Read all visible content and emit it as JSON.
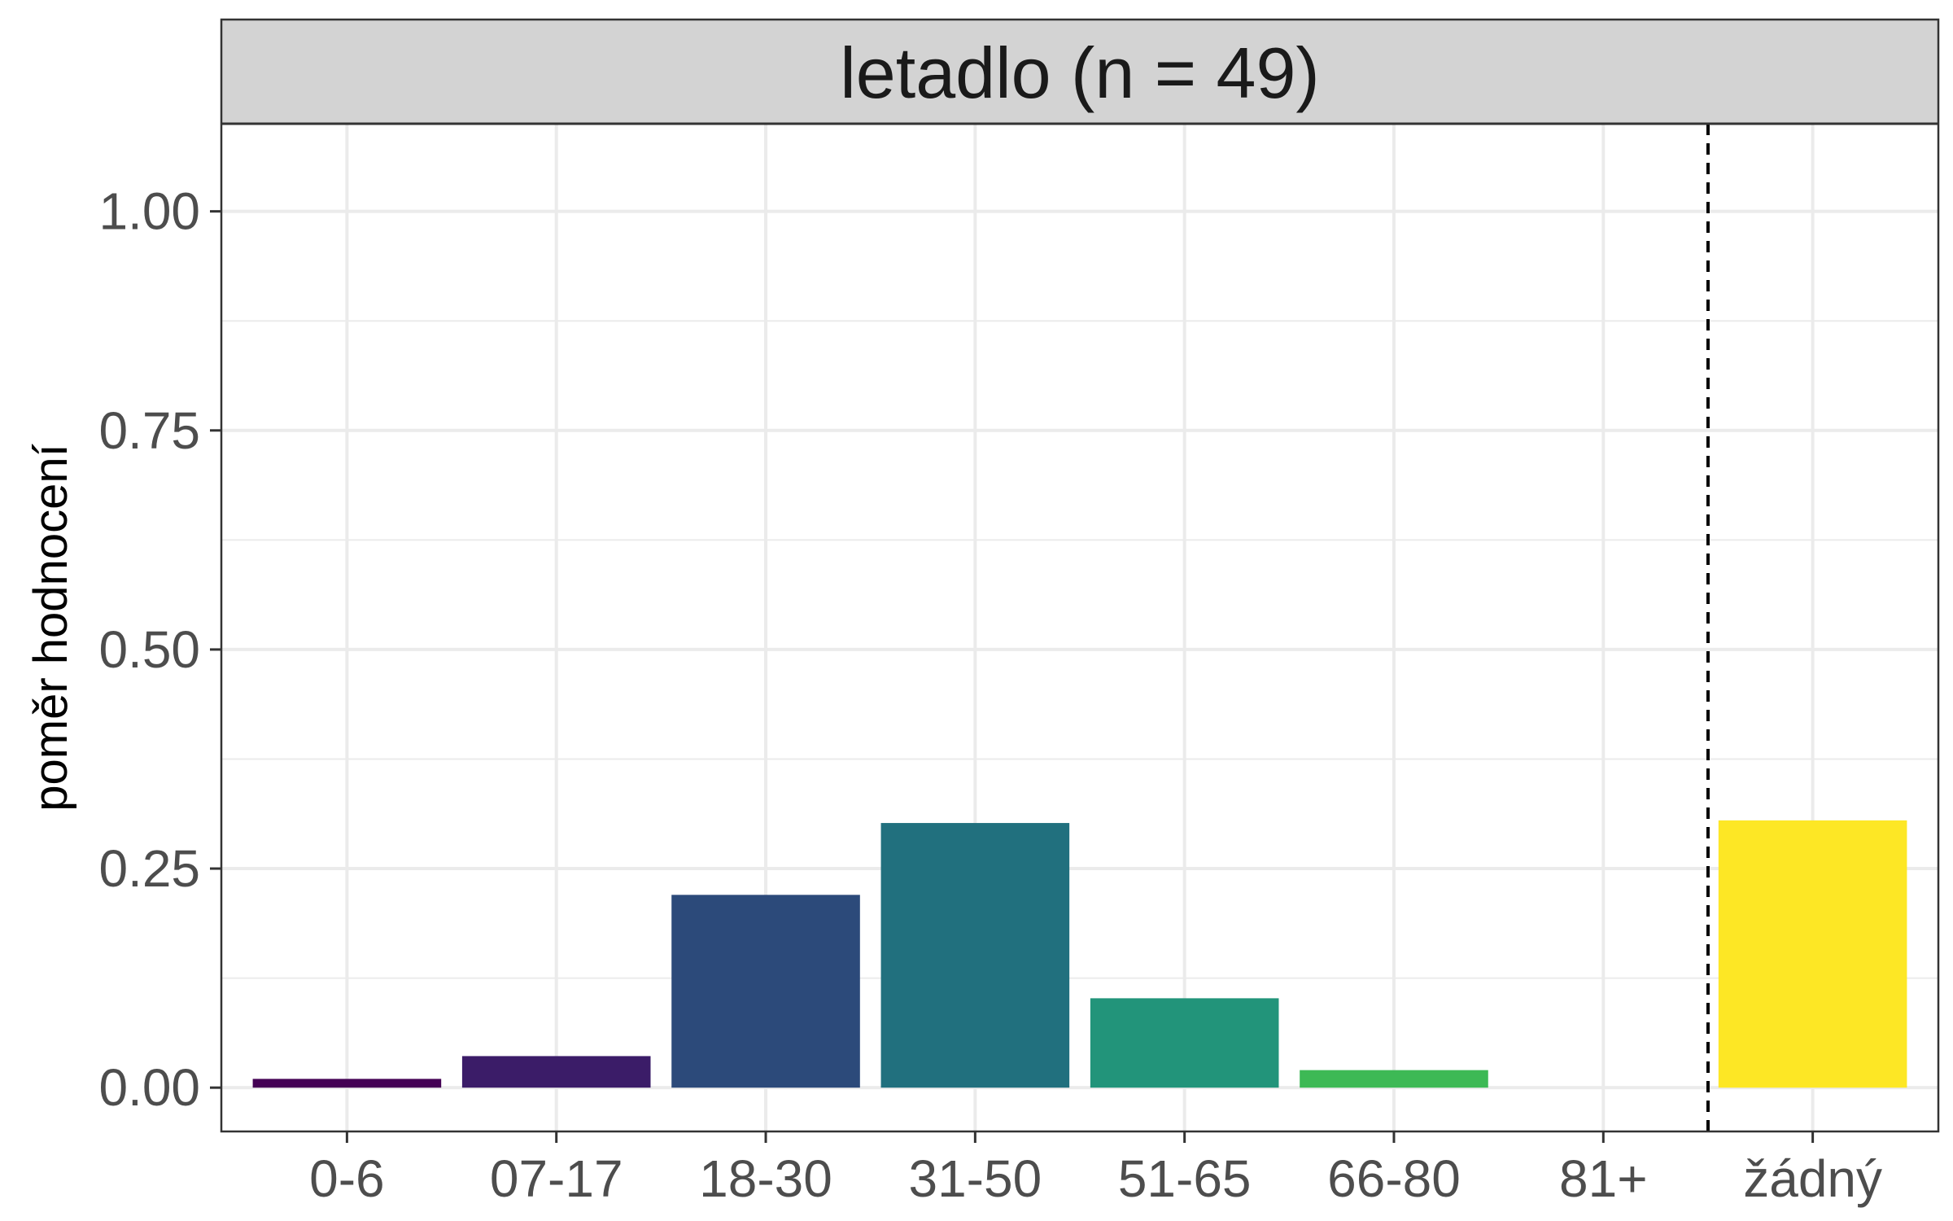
{
  "chart_data": {
    "type": "bar",
    "facet_title": "letadlo (n = 49)",
    "ylabel": "poměr hodnocení",
    "xlabel": "",
    "ylim": [
      -0.05,
      1.1
    ],
    "yticks": [
      0.0,
      0.25,
      0.5,
      0.75,
      1.0
    ],
    "ytick_labels": [
      "0.00",
      "0.25",
      "0.50",
      "0.75",
      "1.00"
    ],
    "categories": [
      "0-6",
      "07-17",
      "18-30",
      "31-50",
      "51-65",
      "66-80",
      "81+",
      "žádný"
    ],
    "values": [
      0.01,
      0.036,
      0.22,
      0.302,
      0.102,
      0.02,
      0.0,
      0.305
    ],
    "colors": [
      "#440154",
      "#3b1c68",
      "#2c4a7a",
      "#21707e",
      "#22947a",
      "#3db955",
      "#7bd14a",
      "#fde725"
    ],
    "separator_after_category": "81+",
    "grid": true,
    "panel_border_color": "#333333",
    "strip_fill": "#d3d3d3",
    "grid_color": "#ebebeb"
  }
}
